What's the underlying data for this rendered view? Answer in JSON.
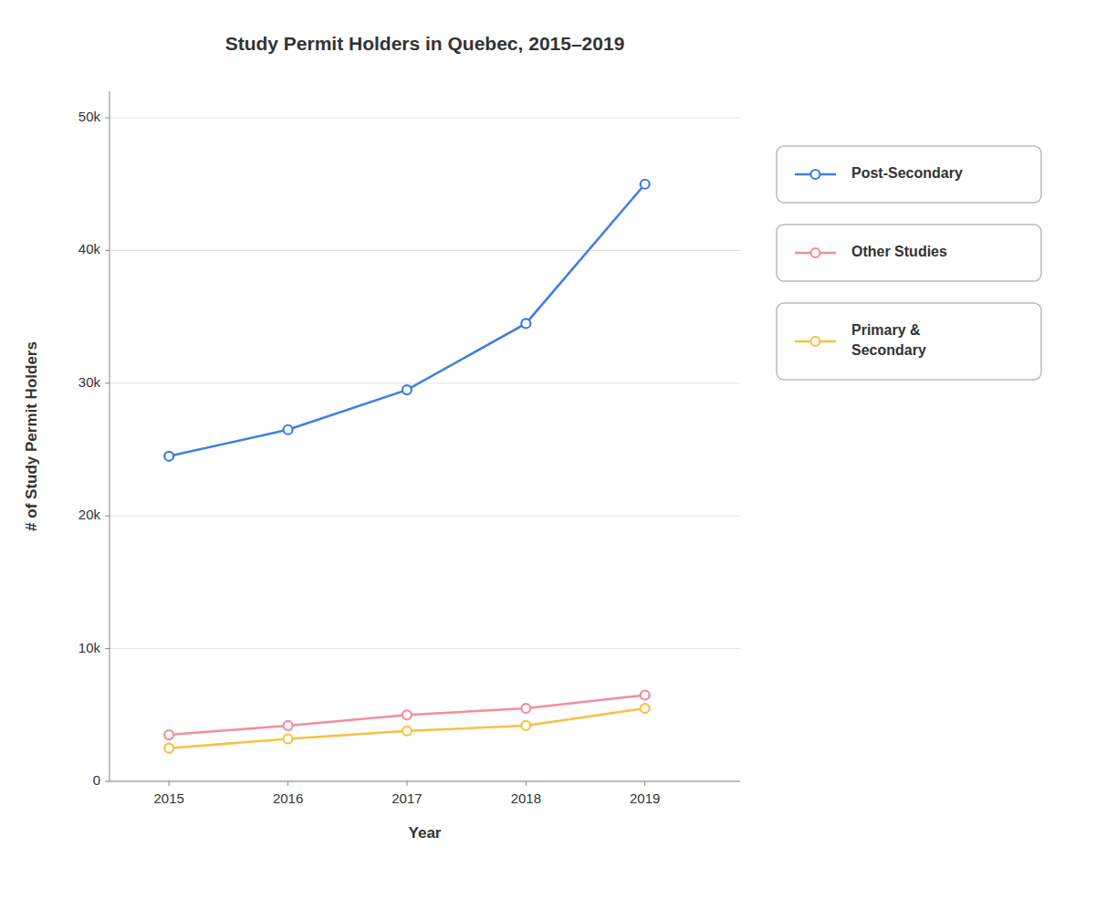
{
  "chart_data": {
    "type": "line",
    "title": "Study Permit Holders in Quebec, 2015–2019",
    "x_label": "Year",
    "y_label": "# of Study Permit Holders",
    "x": [
      2015,
      2016,
      2017,
      2018,
      2019
    ],
    "series": [
      {
        "name": "Post-Secondary",
        "color": "#3D7FE0",
        "marker": "circle",
        "line_style": "solid",
        "values": [
          24500,
          26500,
          29500,
          34500,
          45000
        ]
      },
      {
        "name": "Other Studies",
        "color": "#F48CA0",
        "marker": "circle",
        "line_style": "solid",
        "values": [
          3500,
          4200,
          5000,
          5500,
          6500
        ]
      },
      {
        "name": "Primary &\nSecondary",
        "color": "#F5C242",
        "marker": "circle",
        "line_style": "solid",
        "values": [
          2500,
          3200,
          3800,
          4200,
          5500
        ]
      }
    ],
    "xlim": [
      2014.5,
      2019.8
    ],
    "xticks": [
      2015,
      2016,
      2017,
      2018,
      2019
    ],
    "ylim": [
      0,
      52000
    ],
    "yticks": [
      0,
      {
        "value": 10000,
        "label": "10k"
      },
      {
        "value": 20000,
        "label": "20k"
      },
      {
        "value": 30000,
        "label": "30k"
      },
      {
        "value": 40000,
        "label": "40k"
      },
      {
        "value": 50000,
        "label": "50k"
      }
    ],
    "grid": true,
    "legend": "right"
  }
}
